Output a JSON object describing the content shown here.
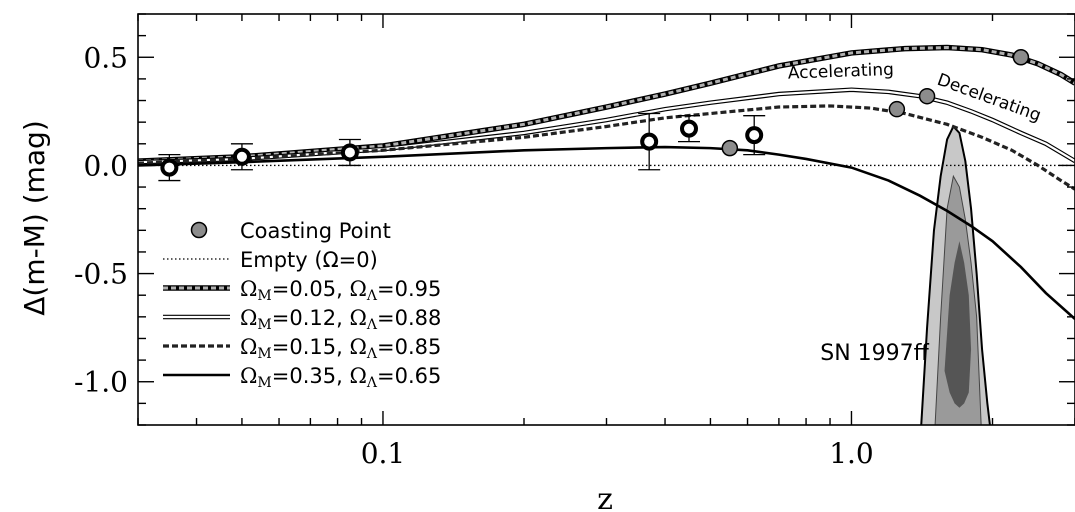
{
  "chart_data": {
    "type": "line",
    "xlabel": "z",
    "ylabel": "Δ(m-M) (mag)",
    "x_scale": "log",
    "xlim": [
      0.03,
      3.0
    ],
    "ylim": [
      -1.2,
      0.7
    ],
    "x_ticks": [
      {
        "value": 0.1,
        "label": "0.1"
      },
      {
        "value": 1.0,
        "label": "1.0"
      }
    ],
    "y_ticks": [
      {
        "value": 0.5,
        "label": "0.5"
      },
      {
        "value": 0.0,
        "label": "0.0"
      },
      {
        "value": -0.5,
        "label": "-0.5"
      },
      {
        "value": -1.0,
        "label": "-1.0"
      }
    ],
    "legend_placement": "lower-left",
    "legend": [
      {
        "key": "coasting",
        "style": "marker",
        "text": "Coasting Point"
      },
      {
        "key": "empty",
        "style": "dotted",
        "text": "Empty (Ω=0)"
      },
      {
        "key": "m005",
        "style": "hatched",
        "text": "ΩM=0.05, ΩΛ=0.95",
        "om": "0.05",
        "ol": "0.95"
      },
      {
        "key": "m012",
        "style": "double",
        "text": "ΩM=0.12, ΩΛ=0.88",
        "om": "0.12",
        "ol": "0.88"
      },
      {
        "key": "m015",
        "style": "dashed",
        "text": "ΩM=0.15, ΩΛ=0.85",
        "om": "0.15",
        "ol": "0.85"
      },
      {
        "key": "m035",
        "style": "solid",
        "text": "ΩM=0.35, ΩΛ=0.65",
        "om": "0.35",
        "ol": "0.65"
      }
    ],
    "series": [
      {
        "key": "empty",
        "style": "dotted",
        "x": [
          0.03,
          3.0
        ],
        "y": [
          0.0,
          0.0
        ]
      },
      {
        "key": "m005",
        "style": "hatched",
        "x": [
          0.03,
          0.05,
          0.1,
          0.2,
          0.3,
          0.4,
          0.5,
          0.7,
          1.0,
          1.3,
          1.6,
          1.9,
          2.2,
          2.5,
          2.8,
          3.0
        ],
        "y": [
          0.02,
          0.04,
          0.09,
          0.19,
          0.27,
          0.33,
          0.38,
          0.46,
          0.52,
          0.54,
          0.545,
          0.535,
          0.51,
          0.47,
          0.42,
          0.38
        ]
      },
      {
        "key": "m012",
        "style": "double",
        "x": [
          0.03,
          0.05,
          0.1,
          0.2,
          0.3,
          0.4,
          0.5,
          0.7,
          1.0,
          1.2,
          1.4,
          1.6,
          1.8,
          2.0,
          2.3,
          2.6,
          3.0
        ],
        "y": [
          0.015,
          0.03,
          0.075,
          0.15,
          0.21,
          0.26,
          0.29,
          0.33,
          0.35,
          0.34,
          0.32,
          0.29,
          0.25,
          0.21,
          0.15,
          0.1,
          0.02
        ]
      },
      {
        "key": "m015",
        "style": "dashed",
        "x": [
          0.03,
          0.05,
          0.1,
          0.2,
          0.3,
          0.4,
          0.5,
          0.7,
          0.9,
          1.1,
          1.3,
          1.6,
          1.9,
          2.2,
          2.5,
          2.8,
          3.0
        ],
        "y": [
          0.01,
          0.03,
          0.07,
          0.13,
          0.18,
          0.22,
          0.24,
          0.27,
          0.275,
          0.265,
          0.24,
          0.19,
          0.13,
          0.07,
          0.0,
          -0.07,
          -0.11
        ]
      },
      {
        "key": "m035",
        "style": "solid",
        "x": [
          0.03,
          0.05,
          0.1,
          0.2,
          0.3,
          0.4,
          0.5,
          0.6,
          0.7,
          0.8,
          1.0,
          1.2,
          1.4,
          1.6,
          1.8,
          2.0,
          2.3,
          2.6,
          3.0
        ],
        "y": [
          0.0,
          0.015,
          0.04,
          0.07,
          0.08,
          0.085,
          0.08,
          0.07,
          0.05,
          0.03,
          -0.01,
          -0.07,
          -0.14,
          -0.21,
          -0.28,
          -0.35,
          -0.47,
          -0.59,
          -0.71
        ]
      }
    ],
    "coasting_points": [
      {
        "series": "m005",
        "x": 2.3,
        "y": 0.5
      },
      {
        "series": "m012",
        "x": 1.45,
        "y": 0.32
      },
      {
        "series": "m015",
        "x": 1.25,
        "y": 0.26
      },
      {
        "series": "m035",
        "x": 0.55,
        "y": 0.08
      }
    ],
    "data_points": [
      {
        "x": 0.035,
        "y": -0.01,
        "err": 0.06
      },
      {
        "x": 0.05,
        "y": 0.04,
        "err": 0.06
      },
      {
        "x": 0.085,
        "y": 0.06,
        "err": 0.06
      },
      {
        "x": 0.37,
        "y": 0.11,
        "err": 0.13
      },
      {
        "x": 0.45,
        "y": 0.17,
        "err": 0.06
      },
      {
        "x": 0.62,
        "y": 0.14,
        "err": 0.09
      }
    ],
    "contour": {
      "label": "SN 1997ff",
      "outer_z": [
        1.4,
        1.45,
        1.5,
        1.55,
        1.6,
        1.65,
        1.7,
        1.75,
        1.8,
        1.85,
        1.9,
        1.95,
        2.0
      ],
      "outer_top": [
        -1.3,
        -0.75,
        -0.3,
        -0.05,
        0.12,
        0.18,
        0.15,
        0.02,
        -0.2,
        -0.5,
        -0.85,
        -1.1,
        -1.3
      ],
      "outer_bottom": [
        -1.3,
        -1.3,
        -1.3,
        -1.3,
        -1.3,
        -1.3,
        -1.3,
        -1.3,
        -1.3,
        -1.3,
        -1.3,
        -1.3,
        -1.3
      ],
      "mid_z": [
        1.5,
        1.55,
        1.6,
        1.65,
        1.7,
        1.75,
        1.8,
        1.85,
        1.9,
        1.85,
        1.8,
        1.75,
        1.7,
        1.65,
        1.6,
        1.55,
        1.5
      ],
      "mid_y": [
        -1.3,
        -0.7,
        -0.2,
        -0.05,
        -0.1,
        -0.25,
        -0.45,
        -0.7,
        -1.3,
        -1.4,
        -1.42,
        -1.42,
        -1.4,
        -1.35,
        -1.3,
        -1.3,
        -1.3
      ],
      "inner_z": [
        1.58,
        1.62,
        1.66,
        1.7,
        1.74,
        1.78,
        1.8,
        1.78,
        1.74,
        1.7,
        1.66,
        1.62,
        1.58
      ],
      "inner_y": [
        -0.95,
        -0.6,
        -0.45,
        -0.35,
        -0.45,
        -0.6,
        -0.85,
        -1.05,
        -1.1,
        -1.12,
        -1.1,
        -1.05,
        -0.95
      ]
    },
    "annotations": [
      {
        "text": "Accelerating",
        "x": 0.95,
        "y": 0.41,
        "angle": -2
      },
      {
        "text": "Decelerating",
        "x": 1.95,
        "y": 0.29,
        "angle": 20
      }
    ],
    "colors": {
      "coasting_fill": "#8c8c8c",
      "contour_outer": "#c8c8c8",
      "contour_mid": "#9a9a9a",
      "contour_inner": "#555555"
    }
  }
}
